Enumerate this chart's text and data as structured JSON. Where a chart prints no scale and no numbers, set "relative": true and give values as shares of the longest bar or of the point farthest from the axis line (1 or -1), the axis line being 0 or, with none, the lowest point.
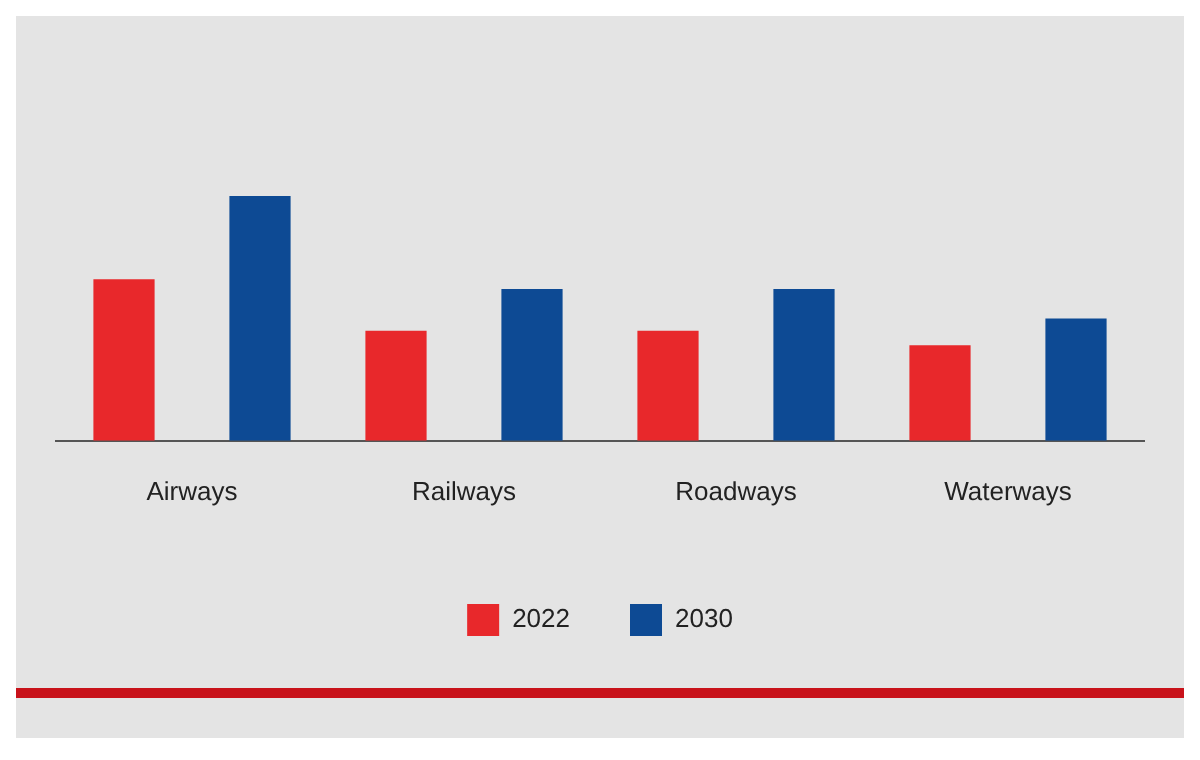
{
  "chart_data": {
    "type": "bar",
    "relative": true,
    "categories": [
      "Airways",
      "Railways",
      "Roadways",
      "Waterways"
    ],
    "series": [
      {
        "name": "2022",
        "color": "#e8282b",
        "values": [
          0.66,
          0.45,
          0.45,
          0.39
        ]
      },
      {
        "name": "2030",
        "color": "#0d4a94",
        "values": [
          1,
          0.62,
          0.62,
          0.5
        ]
      }
    ],
    "legend": "bottom",
    "grid": false
  }
}
